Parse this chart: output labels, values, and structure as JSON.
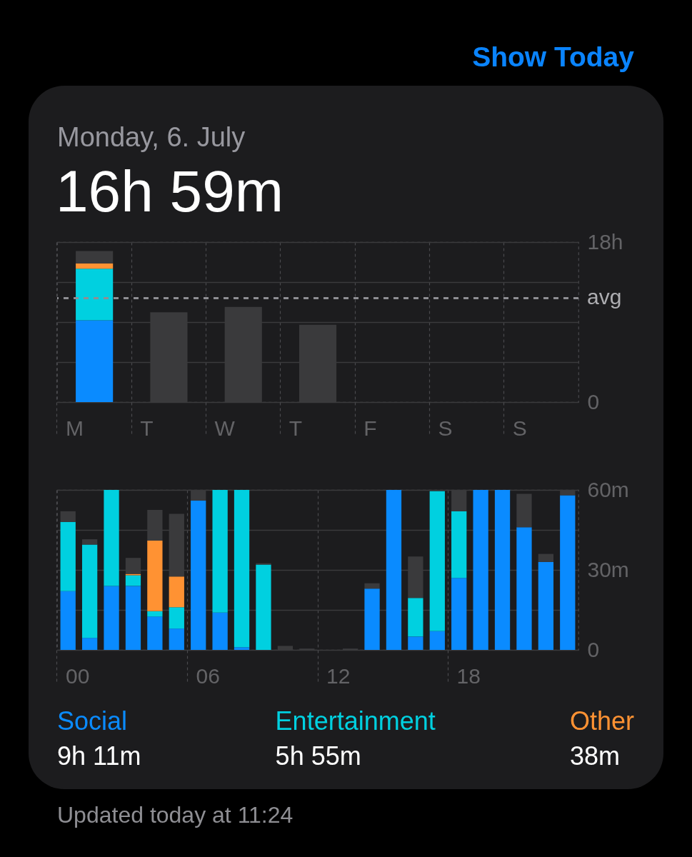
{
  "chart_data": [
    {
      "type": "bar",
      "title": "Monday, 6. July",
      "subtitle": "16h 59m",
      "annotations": [
        "Show Today"
      ],
      "categories": [
        "M",
        "T",
        "W",
        "T",
        "F",
        "S",
        "S"
      ],
      "stacked": true,
      "series": [
        {
          "color": "#0a8bff",
          "values": [
            9.2,
            null,
            null,
            null,
            null,
            null,
            null
          ]
        },
        {
          "color": "#00d0e0",
          "values": [
            5.8,
            null,
            null,
            null,
            null,
            null,
            null
          ]
        },
        {
          "color": "#ff9233",
          "values": [
            0.6,
            null,
            null,
            null,
            null,
            null,
            null
          ]
        },
        {
          "color": "#3a3a3c",
          "values": [
            1.4,
            10.1,
            10.7,
            8.7,
            null,
            null,
            null
          ]
        }
      ],
      "ylim": [
        0,
        18
      ],
      "yticks": [
        0,
        {
          "value": 4.5,
          "label": null
        },
        {
          "value": 9,
          "label": null
        },
        {
          "value": 13.5,
          "label": null
        },
        {
          "value": 18,
          "label": "18h"
        }
      ],
      "ref_lines": [
        {
          "axis": "y",
          "value": 11.7,
          "label": "avg",
          "color": "#8e8e93",
          "line_style": "dashed"
        }
      ],
      "grid": true
    },
    {
      "type": "bar",
      "annotations": [
        "9h 11m",
        "5h 55m",
        "38m",
        "Updated today at 11:24"
      ],
      "categories": [
        "00",
        null,
        null,
        null,
        null,
        null,
        "06",
        null,
        null,
        null,
        null,
        null,
        "12",
        null,
        null,
        null,
        null,
        null,
        "18",
        null,
        null,
        null,
        null,
        null
      ],
      "stacked": true,
      "series": [
        {
          "name": "Social",
          "color": "#0a8bff",
          "values": [
            22,
            4.5,
            24,
            24,
            12.5,
            8,
            56,
            14,
            1,
            null,
            null,
            null,
            null,
            null,
            23,
            60,
            5,
            7,
            27,
            60,
            60,
            46,
            33,
            58
          ]
        },
        {
          "name": "Entertainment",
          "color": "#00d0e0",
          "values": [
            26,
            35,
            36,
            4,
            2,
            8,
            null,
            46,
            59,
            32,
            null,
            null,
            null,
            null,
            null,
            null,
            14.5,
            52.5,
            25,
            null,
            null,
            null,
            null,
            null
          ]
        },
        {
          "name": "Other",
          "color": "#ff9233",
          "values": [
            null,
            null,
            null,
            0.5,
            26.5,
            11.5,
            null,
            null,
            null,
            null,
            null,
            null,
            null,
            null,
            null,
            null,
            null,
            null,
            null,
            null,
            null,
            null,
            null,
            null
          ]
        },
        {
          "color": "#3a3a3c",
          "values": [
            4,
            2,
            null,
            6,
            11.5,
            23.5,
            4,
            null,
            null,
            0.5,
            1.5,
            0.5,
            null,
            0.5,
            2,
            null,
            15.5,
            null,
            8,
            null,
            null,
            12.5,
            3,
            2
          ]
        }
      ],
      "ylim": [
        0,
        60
      ],
      "yticks": [
        0,
        {
          "value": 15,
          "label": null
        },
        {
          "value": 30,
          "label": "30m"
        },
        {
          "value": 45,
          "label": null
        },
        {
          "value": 60,
          "label": "60m"
        }
      ],
      "grid": true,
      "legend": "bottom"
    }
  ]
}
